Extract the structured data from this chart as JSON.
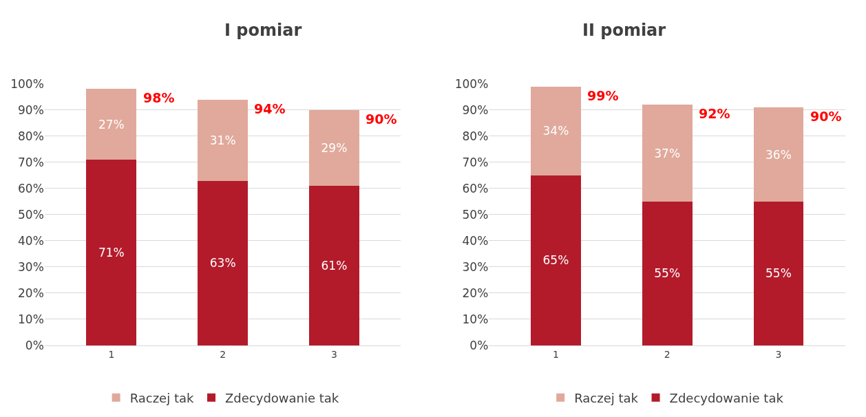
{
  "chart_data": [
    {
      "type": "bar",
      "title": "I pomiar",
      "stacked": true,
      "categories": [
        "1",
        "2",
        "3"
      ],
      "series": [
        {
          "name": "Zdecydowanie tak",
          "color": "#b31b2b",
          "values": [
            71,
            63,
            61
          ],
          "value_labels": [
            "71%",
            "63%",
            "61%"
          ]
        },
        {
          "name": "Raczej tak",
          "color": "#e0a99b",
          "values": [
            27,
            31,
            29
          ],
          "value_labels": [
            "27%",
            "31%",
            "29%"
          ]
        }
      ],
      "totals": [
        "98%",
        "94%",
        "90%"
      ],
      "ylim": [
        0,
        100
      ],
      "yticks": [
        {
          "value": 0,
          "label": "0%"
        },
        {
          "value": 10,
          "label": "10%"
        },
        {
          "value": 20,
          "label": "20%"
        },
        {
          "value": 30,
          "label": "30%"
        },
        {
          "value": 40,
          "label": "40%"
        },
        {
          "value": 50,
          "label": "50%"
        },
        {
          "value": 60,
          "label": "60%"
        },
        {
          "value": 70,
          "label": "70%"
        },
        {
          "value": 80,
          "label": "80%"
        },
        {
          "value": 90,
          "label": "90%"
        },
        {
          "value": 100,
          "label": "100%"
        }
      ],
      "grid": "y",
      "legend": "bottom"
    },
    {
      "type": "bar",
      "title": "II pomiar",
      "stacked": true,
      "categories": [
        "1",
        "2",
        "3"
      ],
      "series": [
        {
          "name": "Zdecydowanie tak",
          "color": "#b31b2b",
          "values": [
            65,
            55,
            55
          ],
          "value_labels": [
            "65%",
            "55%",
            "55%"
          ]
        },
        {
          "name": "Raczej tak",
          "color": "#e0a99b",
          "values": [
            34,
            37,
            36
          ],
          "value_labels": [
            "34%",
            "37%",
            "36%"
          ]
        }
      ],
      "totals": [
        "99%",
        "92%",
        "90%"
      ],
      "ylim": [
        0,
        100
      ],
      "yticks": [
        {
          "value": 0,
          "label": "0%"
        },
        {
          "value": 10,
          "label": "10%"
        },
        {
          "value": 20,
          "label": "20%"
        },
        {
          "value": 30,
          "label": "30%"
        },
        {
          "value": 40,
          "label": "40%"
        },
        {
          "value": 50,
          "label": "50%"
        },
        {
          "value": 60,
          "label": "60%"
        },
        {
          "value": 70,
          "label": "70%"
        },
        {
          "value": 80,
          "label": "80%"
        },
        {
          "value": 90,
          "label": "90%"
        },
        {
          "value": 100,
          "label": "100%"
        }
      ],
      "grid": "y",
      "legend": "bottom"
    }
  ]
}
